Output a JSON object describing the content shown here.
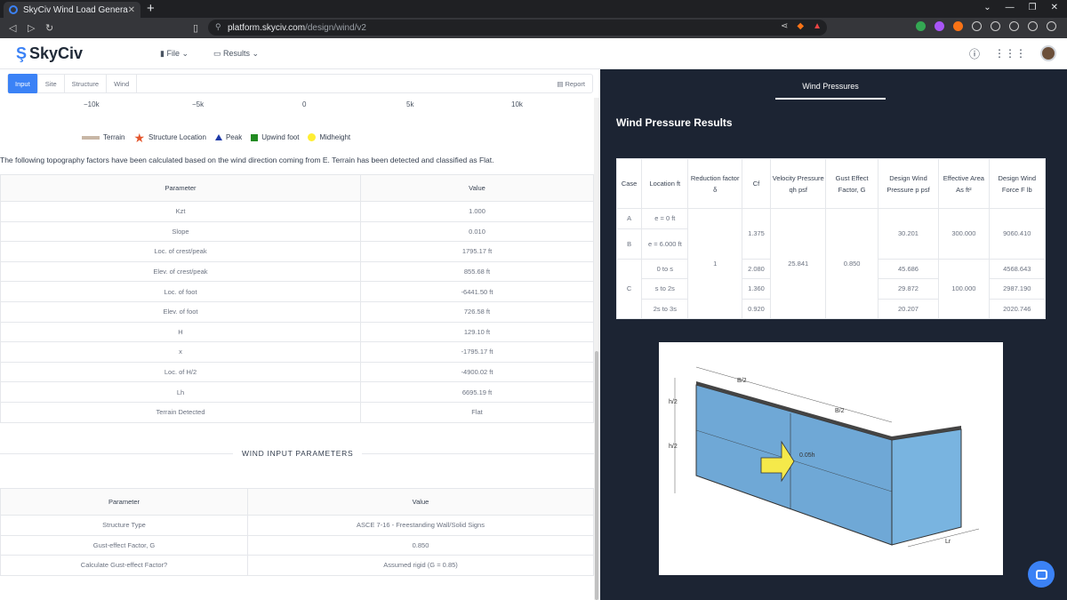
{
  "browser": {
    "tab_title": "SkyCiv Wind Load Generat",
    "url_host": "platform.skyciv.com",
    "url_path": "/design/wind/v2"
  },
  "header": {
    "logo": "SkyCiv",
    "menu_file": "File",
    "menu_results": "Results"
  },
  "left": {
    "tabs": [
      "Input",
      "Site",
      "Structure",
      "Wind"
    ],
    "report": "Report",
    "axis_ticks": [
      "−10k",
      "−5k",
      "0",
      "5k",
      "10k"
    ],
    "legend": [
      "Terrain",
      "Structure Location",
      "Peak",
      "Upwind foot",
      "Midheight"
    ],
    "note": "The following topography factors have been calculated based on the wind direction coming from E. Terrain has been detected and classified as Flat.",
    "topo_headers": [
      "Parameter",
      "Value"
    ],
    "topo_rows": [
      [
        "Kzt",
        "1.000"
      ],
      [
        "Slope",
        "0.010"
      ],
      [
        "Loc. of crest/peak",
        "1795.17 ft"
      ],
      [
        "Elev. of crest/peak",
        "855.68 ft"
      ],
      [
        "Loc. of foot",
        "-6441.50 ft"
      ],
      [
        "Elev. of foot",
        "726.58 ft"
      ],
      [
        "H",
        "129.10 ft"
      ],
      [
        "x",
        "-1795.17 ft"
      ],
      [
        "Loc. of H/2",
        "-4900.02 ft"
      ],
      [
        "Lh",
        "6695.19 ft"
      ],
      [
        "Terrain Detected",
        "Flat"
      ]
    ],
    "section_title": "WIND INPUT PARAMETERS",
    "wind_headers": [
      "Parameter",
      "Value"
    ],
    "wind_rows": [
      [
        "Structure Type",
        "ASCE 7-16 - Freestanding Wall/Solid Signs"
      ],
      [
        "Gust-effect Factor, G",
        "0.850"
      ],
      [
        "Calculate Gust-effect Factor?",
        "Assumed rigid (G = 0.85)"
      ]
    ]
  },
  "right": {
    "tab": "Wind Pressures",
    "title": "Wind Pressure Results",
    "headers": [
      "Case",
      "Location ft",
      "Reduction factor δ",
      "Cf",
      "Velocity Pressure qh psf",
      "Gust Effect Factor, G",
      "Design Wind Pressure p psf",
      "Effective Area As ft²",
      "Design Wind Force F lb"
    ],
    "case_a": "A",
    "case_b": "B",
    "case_c": "C",
    "loc": [
      "e = 0 ft",
      "e = 6.000 ft",
      "0 to s",
      "s to 2s",
      "2s to 3s"
    ],
    "reduction": "1",
    "cf": [
      "1.375",
      "2.080",
      "1.360",
      "0.920"
    ],
    "qh": "25.841",
    "g": "0.850",
    "p": [
      "30.201",
      "45.686",
      "29.872",
      "20.207"
    ],
    "as": [
      "300.000",
      "100.000"
    ],
    "f": [
      "9060.410",
      "4568.643",
      "2987.190",
      "2020.746"
    ]
  },
  "diagram": {
    "labels": [
      "B/2",
      "B/2",
      "h/2",
      "h/2",
      "0.05h",
      "Lr"
    ]
  }
}
